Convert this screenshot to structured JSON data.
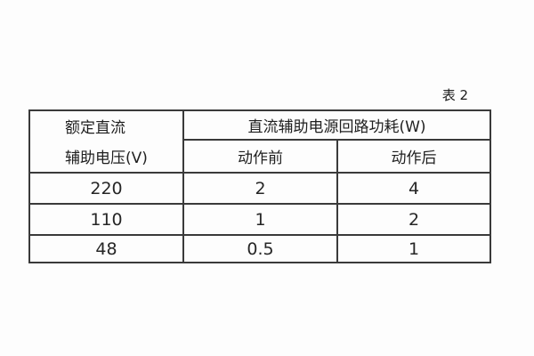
{
  "caption": "表 2",
  "table": {
    "col1_header": {
      "line1": "额定直流",
      "line2": "辅助电压(V)"
    },
    "group_header": "直流辅助电源回路功耗(W)",
    "sub_headers": {
      "before": "动作前",
      "after": "动作后"
    },
    "rows": [
      {
        "voltage": "220",
        "before": "2",
        "after": "4"
      },
      {
        "voltage": "110",
        "before": "1",
        "after": "2"
      },
      {
        "voltage": "48",
        "before": "0.5",
        "after": "1"
      }
    ]
  }
}
